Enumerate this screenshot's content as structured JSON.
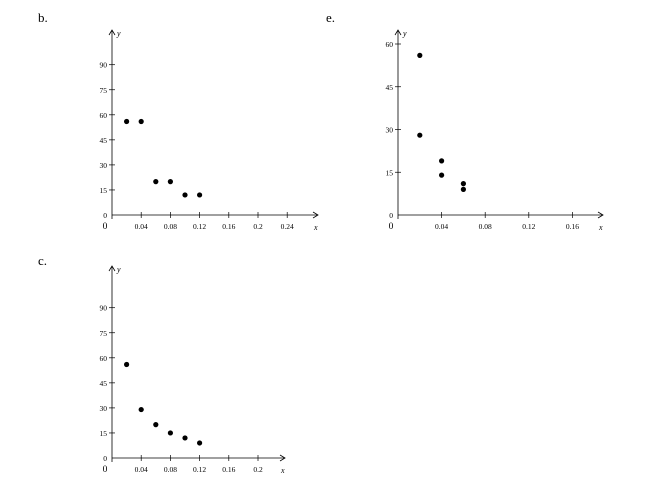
{
  "chart_data": [
    {
      "id": "b",
      "label": "b.",
      "type": "scatter",
      "xlabel": "x",
      "ylabel": "y",
      "origin_label": "0",
      "xlim": [
        0,
        0.28
      ],
      "ylim": [
        0,
        100
      ],
      "xticks": [
        0.04,
        0.08,
        0.12,
        0.16,
        0.2,
        0.24
      ],
      "xtick_labels": [
        "0.04",
        "0.08",
        "0.12",
        "0.16",
        "0.2",
        "0.24"
      ],
      "yticks": [
        0,
        15,
        30,
        45,
        60,
        75,
        90
      ],
      "ytick_labels": [
        "0",
        "15",
        "30",
        "45",
        "60",
        "75",
        "90"
      ],
      "points": [
        {
          "x": 0.02,
          "y": 56
        },
        {
          "x": 0.04,
          "y": 56
        },
        {
          "x": 0.06,
          "y": 20
        },
        {
          "x": 0.08,
          "y": 20
        },
        {
          "x": 0.1,
          "y": 12
        },
        {
          "x": 0.12,
          "y": 12
        }
      ],
      "grid": false
    },
    {
      "id": "e",
      "label": "e.",
      "type": "scatter",
      "xlabel": "x",
      "ylabel": "y",
      "origin_label": "0",
      "xlim": [
        0,
        0.2
      ],
      "ylim": [
        0,
        66
      ],
      "xticks": [
        0.04,
        0.08,
        0.12,
        0.16
      ],
      "xtick_labels": [
        "0.04",
        "0.08",
        "0.12",
        "0.16"
      ],
      "yticks": [
        0,
        15,
        30,
        45,
        60
      ],
      "ytick_labels": [
        "0",
        "15",
        "30",
        "45",
        "60"
      ],
      "points": [
        {
          "x": 0.02,
          "y": 56
        },
        {
          "x": 0.02,
          "y": 28
        },
        {
          "x": 0.04,
          "y": 19
        },
        {
          "x": 0.04,
          "y": 14
        },
        {
          "x": 0.06,
          "y": 11
        },
        {
          "x": 0.06,
          "y": 9
        }
      ],
      "grid": false
    },
    {
      "id": "c",
      "label": "c.",
      "type": "scatter",
      "xlabel": "x",
      "ylabel": "y",
      "origin_label": "0",
      "xlim": [
        0,
        0.24
      ],
      "ylim": [
        0,
        100
      ],
      "xticks": [
        0.04,
        0.08,
        0.12,
        0.16,
        0.2
      ],
      "xtick_labels": [
        "0.04",
        "0.08",
        "0.12",
        "0.16",
        "0.2"
      ],
      "yticks": [
        0,
        15,
        30,
        45,
        60,
        75,
        90
      ],
      "ytick_labels": [
        "0",
        "15",
        "30",
        "45",
        "60",
        "75",
        "90"
      ],
      "points": [
        {
          "x": 0.02,
          "y": 56
        },
        {
          "x": 0.04,
          "y": 29
        },
        {
          "x": 0.06,
          "y": 20
        },
        {
          "x": 0.08,
          "y": 15
        },
        {
          "x": 0.1,
          "y": 12
        },
        {
          "x": 0.12,
          "y": 9
        }
      ],
      "grid": false
    }
  ]
}
